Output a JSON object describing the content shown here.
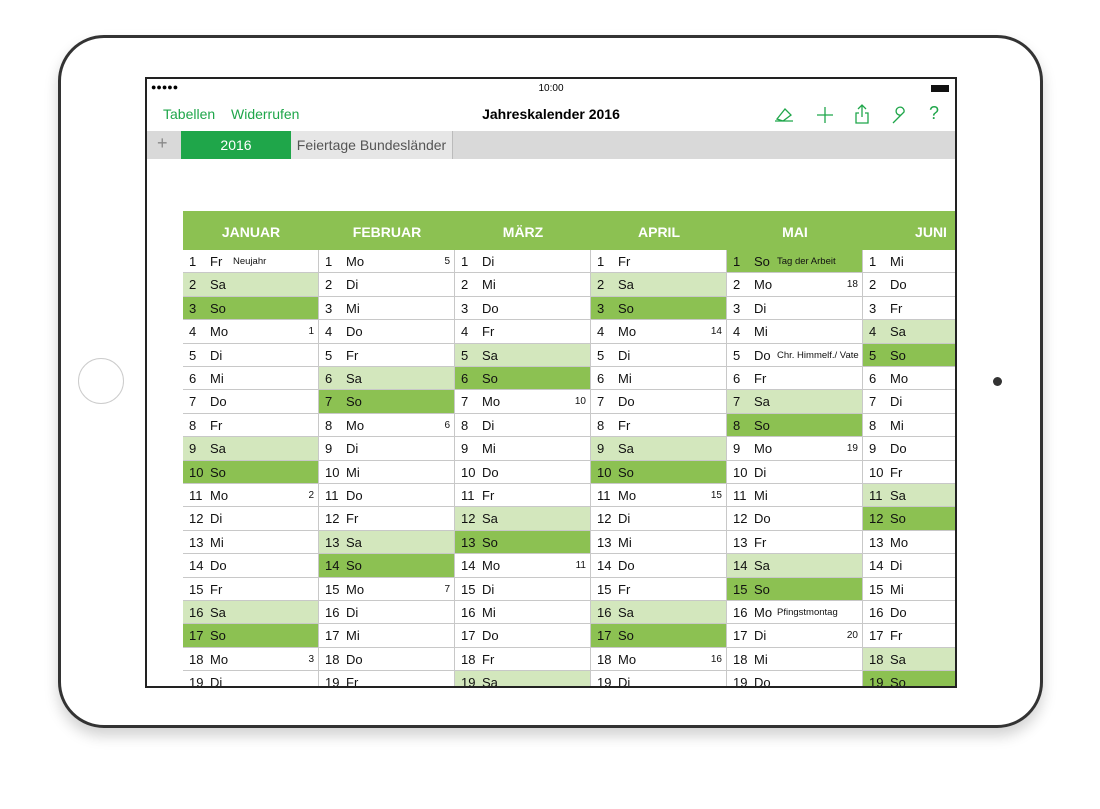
{
  "status_bar": {
    "time": "10:00"
  },
  "toolbar": {
    "left": [
      "Tabellen",
      "Widerrufen"
    ],
    "title": "Jahreskalender 2016",
    "help": "?"
  },
  "tabs": {
    "add": "+",
    "items": [
      "2016",
      "Feiertage Bundesländer"
    ]
  },
  "table": {
    "months": [
      {
        "name": "JANUAR",
        "days": [
          {
            "d": 1,
            "w": "Fr",
            "note": "Neujahr"
          },
          {
            "d": 2,
            "w": "Sa"
          },
          {
            "d": 3,
            "w": "So"
          },
          {
            "d": 4,
            "w": "Mo",
            "kw": 1
          },
          {
            "d": 5,
            "w": "Di"
          },
          {
            "d": 6,
            "w": "Mi"
          },
          {
            "d": 7,
            "w": "Do"
          },
          {
            "d": 8,
            "w": "Fr"
          },
          {
            "d": 9,
            "w": "Sa"
          },
          {
            "d": 10,
            "w": "So"
          },
          {
            "d": 11,
            "w": "Mo",
            "kw": 2
          },
          {
            "d": 12,
            "w": "Di"
          },
          {
            "d": 13,
            "w": "Mi"
          },
          {
            "d": 14,
            "w": "Do"
          },
          {
            "d": 15,
            "w": "Fr"
          },
          {
            "d": 16,
            "w": "Sa"
          },
          {
            "d": 17,
            "w": "So"
          },
          {
            "d": 18,
            "w": "Mo",
            "kw": 3
          },
          {
            "d": 19,
            "w": "Di"
          }
        ]
      },
      {
        "name": "FEBRUAR",
        "days": [
          {
            "d": 1,
            "w": "Mo",
            "kw": 5
          },
          {
            "d": 2,
            "w": "Di"
          },
          {
            "d": 3,
            "w": "Mi"
          },
          {
            "d": 4,
            "w": "Do"
          },
          {
            "d": 5,
            "w": "Fr"
          },
          {
            "d": 6,
            "w": "Sa"
          },
          {
            "d": 7,
            "w": "So"
          },
          {
            "d": 8,
            "w": "Mo",
            "kw": 6
          },
          {
            "d": 9,
            "w": "Di"
          },
          {
            "d": 10,
            "w": "Mi"
          },
          {
            "d": 11,
            "w": "Do"
          },
          {
            "d": 12,
            "w": "Fr"
          },
          {
            "d": 13,
            "w": "Sa"
          },
          {
            "d": 14,
            "w": "So"
          },
          {
            "d": 15,
            "w": "Mo",
            "kw": 7
          },
          {
            "d": 16,
            "w": "Di"
          },
          {
            "d": 17,
            "w": "Mi"
          },
          {
            "d": 18,
            "w": "Do"
          },
          {
            "d": 19,
            "w": "Fr"
          }
        ]
      },
      {
        "name": "MÄRZ",
        "days": [
          {
            "d": 1,
            "w": "Di"
          },
          {
            "d": 2,
            "w": "Mi"
          },
          {
            "d": 3,
            "w": "Do"
          },
          {
            "d": 4,
            "w": "Fr"
          },
          {
            "d": 5,
            "w": "Sa"
          },
          {
            "d": 6,
            "w": "So"
          },
          {
            "d": 7,
            "w": "Mo",
            "kw": 10
          },
          {
            "d": 8,
            "w": "Di"
          },
          {
            "d": 9,
            "w": "Mi"
          },
          {
            "d": 10,
            "w": "Do"
          },
          {
            "d": 11,
            "w": "Fr"
          },
          {
            "d": 12,
            "w": "Sa"
          },
          {
            "d": 13,
            "w": "So"
          },
          {
            "d": 14,
            "w": "Mo",
            "kw": 11
          },
          {
            "d": 15,
            "w": "Di"
          },
          {
            "d": 16,
            "w": "Mi"
          },
          {
            "d": 17,
            "w": "Do"
          },
          {
            "d": 18,
            "w": "Fr"
          },
          {
            "d": 19,
            "w": "Sa"
          }
        ]
      },
      {
        "name": "APRIL",
        "days": [
          {
            "d": 1,
            "w": "Fr"
          },
          {
            "d": 2,
            "w": "Sa"
          },
          {
            "d": 3,
            "w": "So"
          },
          {
            "d": 4,
            "w": "Mo",
            "kw": 14
          },
          {
            "d": 5,
            "w": "Di"
          },
          {
            "d": 6,
            "w": "Mi"
          },
          {
            "d": 7,
            "w": "Do"
          },
          {
            "d": 8,
            "w": "Fr"
          },
          {
            "d": 9,
            "w": "Sa"
          },
          {
            "d": 10,
            "w": "So"
          },
          {
            "d": 11,
            "w": "Mo",
            "kw": 15
          },
          {
            "d": 12,
            "w": "Di"
          },
          {
            "d": 13,
            "w": "Mi"
          },
          {
            "d": 14,
            "w": "Do"
          },
          {
            "d": 15,
            "w": "Fr"
          },
          {
            "d": 16,
            "w": "Sa"
          },
          {
            "d": 17,
            "w": "So"
          },
          {
            "d": 18,
            "w": "Mo",
            "kw": 16
          },
          {
            "d": 19,
            "w": "Di"
          }
        ]
      },
      {
        "name": "MAI",
        "days": [
          {
            "d": 1,
            "w": "So",
            "note": "Tag der Arbeit"
          },
          {
            "d": 2,
            "w": "Mo",
            "kw": 18
          },
          {
            "d": 3,
            "w": "Di"
          },
          {
            "d": 4,
            "w": "Mi"
          },
          {
            "d": 5,
            "w": "Do",
            "note": "Chr. Himmelf./ Vate"
          },
          {
            "d": 6,
            "w": "Fr"
          },
          {
            "d": 7,
            "w": "Sa"
          },
          {
            "d": 8,
            "w": "So"
          },
          {
            "d": 9,
            "w": "Mo",
            "kw": 19
          },
          {
            "d": 10,
            "w": "Di"
          },
          {
            "d": 11,
            "w": "Mi"
          },
          {
            "d": 12,
            "w": "Do"
          },
          {
            "d": 13,
            "w": "Fr"
          },
          {
            "d": 14,
            "w": "Sa"
          },
          {
            "d": 15,
            "w": "So"
          },
          {
            "d": 16,
            "w": "Mo",
            "note": "Pfingstmontag"
          },
          {
            "d": 17,
            "w": "Di",
            "kw": 20
          },
          {
            "d": 18,
            "w": "Mi"
          },
          {
            "d": 19,
            "w": "Do"
          }
        ]
      },
      {
        "name": "JUNI",
        "days": [
          {
            "d": 1,
            "w": "Mi"
          },
          {
            "d": 2,
            "w": "Do"
          },
          {
            "d": 3,
            "w": "Fr"
          },
          {
            "d": 4,
            "w": "Sa"
          },
          {
            "d": 5,
            "w": "So"
          },
          {
            "d": 6,
            "w": "Mo"
          },
          {
            "d": 7,
            "w": "Di"
          },
          {
            "d": 8,
            "w": "Mi"
          },
          {
            "d": 9,
            "w": "Do"
          },
          {
            "d": 10,
            "w": "Fr"
          },
          {
            "d": 11,
            "w": "Sa"
          },
          {
            "d": 12,
            "w": "So"
          },
          {
            "d": 13,
            "w": "Mo"
          },
          {
            "d": 14,
            "w": "Di"
          },
          {
            "d": 15,
            "w": "Mi"
          },
          {
            "d": 16,
            "w": "Do"
          },
          {
            "d": 17,
            "w": "Fr"
          },
          {
            "d": 18,
            "w": "Sa"
          },
          {
            "d": 19,
            "w": "So"
          }
        ]
      }
    ]
  }
}
